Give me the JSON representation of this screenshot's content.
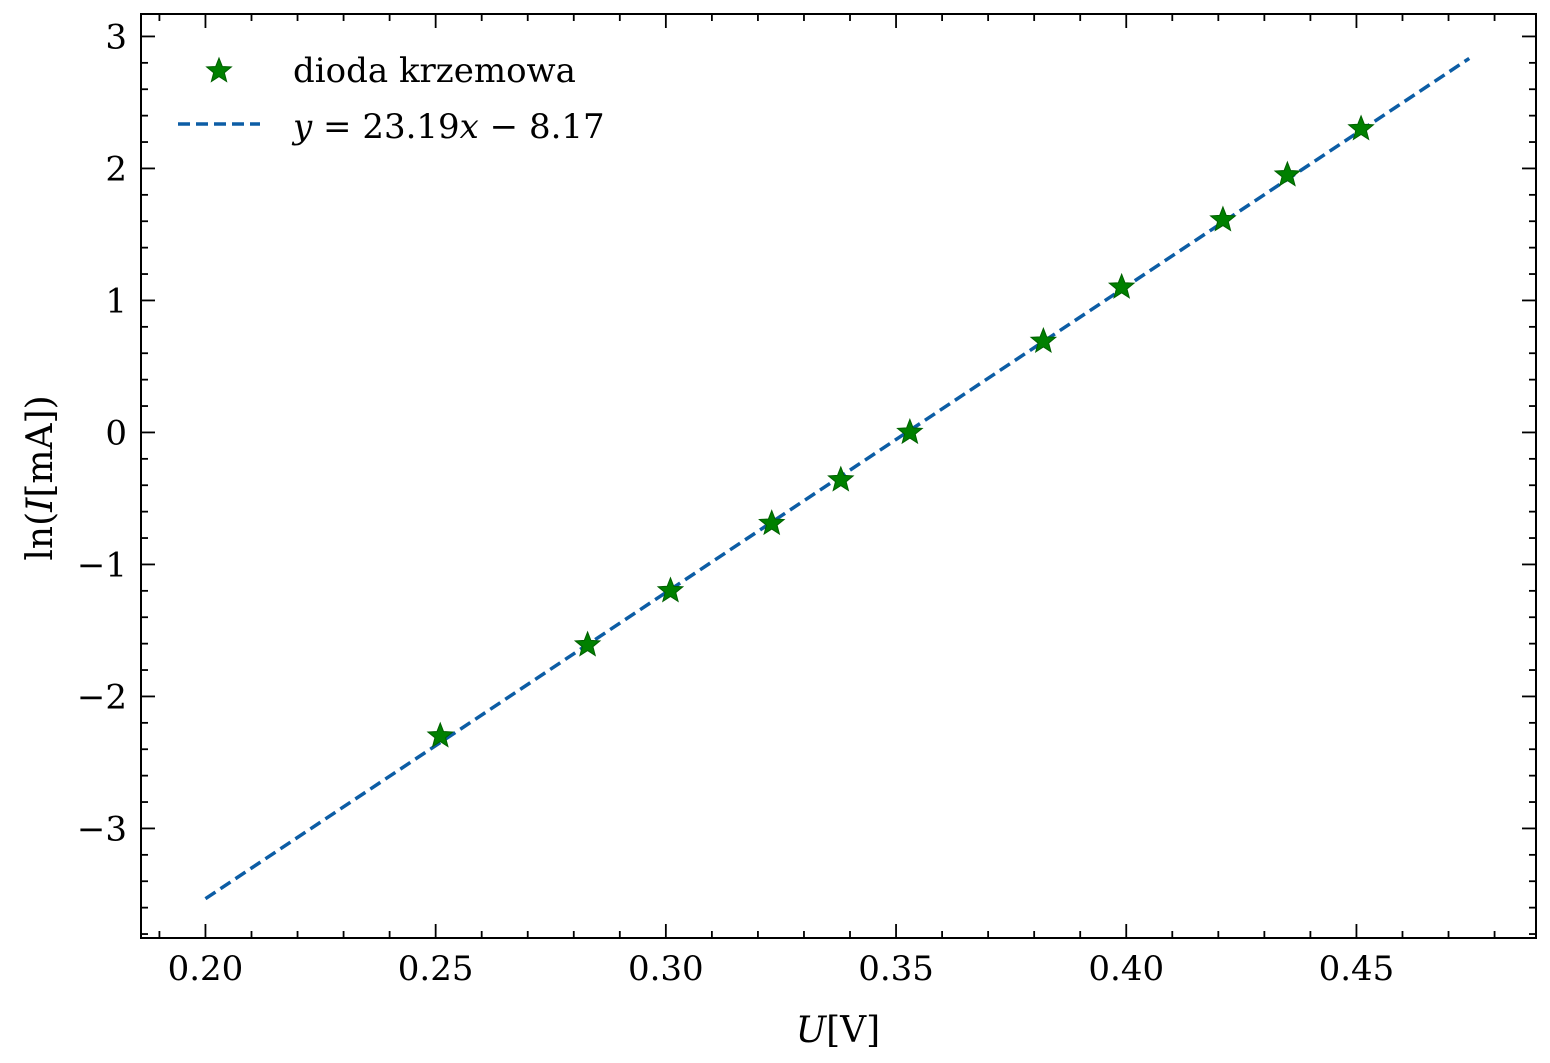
{
  "chart_data": {
    "type": "scatter",
    "title": "",
    "xlabel_var": "U",
    "xlabel_unit": "[V]",
    "ylabel_pre": "ln(",
    "ylabel_var": "I",
    "ylabel_post": "[mA])",
    "xlim": [
      0.186,
      0.489
    ],
    "ylim": [
      -3.83,
      3.17
    ],
    "x_ticks": [
      0.2,
      0.25,
      0.3,
      0.35,
      0.4,
      0.45
    ],
    "x_tick_labels": [
      "0.20",
      "0.25",
      "0.30",
      "0.35",
      "0.40",
      "0.45"
    ],
    "y_ticks": [
      3,
      2,
      1,
      0,
      -1,
      -2,
      -3
    ],
    "y_tick_labels": [
      "3",
      "2",
      "1",
      "0",
      "−1",
      "−2",
      "−3"
    ],
    "grid": false,
    "legend_position": "top-left",
    "series": [
      {
        "name": "dioda krzemowa",
        "kind": "scatter",
        "marker": "star",
        "color": "#008000",
        "points": [
          {
            "x": 0.251,
            "y": -2.3
          },
          {
            "x": 0.283,
            "y": -1.61
          },
          {
            "x": 0.301,
            "y": -1.2
          },
          {
            "x": 0.323,
            "y": -0.69
          },
          {
            "x": 0.338,
            "y": -0.36
          },
          {
            "x": 0.353,
            "y": 0.0
          },
          {
            "x": 0.382,
            "y": 0.69
          },
          {
            "x": 0.399,
            "y": 1.1
          },
          {
            "x": 0.421,
            "y": 1.61
          },
          {
            "x": 0.435,
            "y": 1.95
          },
          {
            "x": 0.451,
            "y": 2.3
          }
        ]
      },
      {
        "name_pre": "y",
        "name_mid": " = 23.19",
        "name_var": "x",
        "name_post": " − 8.17",
        "kind": "line",
        "style": "dashed",
        "color": "#0C5DA5",
        "slope": 23.19,
        "intercept": -8.17,
        "x_range": [
          0.2,
          0.4745
        ]
      }
    ]
  }
}
